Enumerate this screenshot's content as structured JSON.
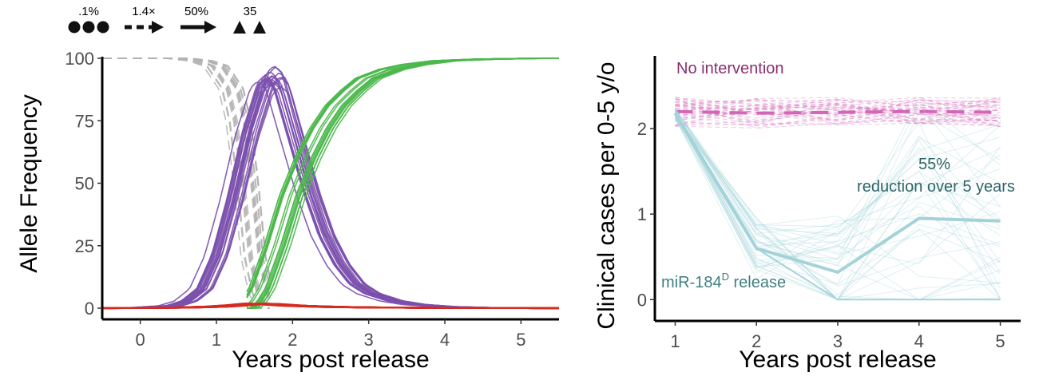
{
  "colors": {
    "wildtype": "#b3b3b3",
    "drive": "#7b4fad",
    "effector": "#4db84d",
    "resistant": "#d62a1f",
    "no_intervention": "#d466b8",
    "release": "#a3d3d9",
    "axis": "#000000"
  },
  "legend": {
    "items": [
      {
        "label": ".1%",
        "icon": "three-dots-icon"
      },
      {
        "label": "1.4×",
        "icon": "dashed-arrow-icon"
      },
      {
        "label": "50%",
        "icon": "solid-arrow-icon"
      },
      {
        "label": "35",
        "icon": "two-triangles-icon"
      }
    ]
  },
  "chart_data": [
    {
      "type": "line",
      "title": "",
      "xlabel": "Years post release",
      "ylabel": "Allele Frequency",
      "xlim": [
        -0.5,
        5.5
      ],
      "ylim": [
        0,
        100
      ],
      "x_ticks": [
        0,
        1,
        2,
        3,
        4,
        5
      ],
      "y_ticks": [
        0,
        25,
        50,
        75,
        100
      ],
      "grid": false,
      "replicates_per_series": 20,
      "series": [
        {
          "name": "",
          "color": "#b3b3b3",
          "style": "dashed",
          "x": [
            -0.5,
            0.5,
            0.8,
            1.0,
            1.2,
            1.3,
            1.4,
            1.5,
            1.6,
            1.7
          ],
          "y": [
            100,
            100,
            99,
            97,
            88,
            75,
            50,
            20,
            6,
            0
          ]
        },
        {
          "name": "",
          "color": "#7b4fad",
          "style": "solid",
          "x": [
            -0.5,
            0.0,
            0.4,
            0.6,
            0.8,
            1.0,
            1.2,
            1.4,
            1.6,
            1.7,
            1.8,
            2.0,
            2.2,
            2.4,
            2.6,
            2.8,
            3.0,
            3.3,
            3.6,
            4.0,
            4.5,
            5.0,
            5.5
          ],
          "y": [
            0,
            0.2,
            1,
            3,
            8,
            22,
            45,
            72,
            92,
            95,
            92,
            70,
            48,
            30,
            18,
            10,
            6,
            3,
            1.5,
            0.6,
            0.2,
            0.1,
            0
          ]
        },
        {
          "name": "",
          "color": "#4db84d",
          "style": "solid",
          "x": [
            1.4,
            1.5,
            1.6,
            1.8,
            2.0,
            2.2,
            2.4,
            2.6,
            2.8,
            3.0,
            3.3,
            3.6,
            4.0,
            4.5,
            5.0,
            5.5
          ],
          "y": [
            0,
            3,
            8,
            25,
            45,
            60,
            72,
            81,
            87,
            92,
            95.5,
            97.5,
            99,
            99.6,
            99.9,
            100
          ]
        },
        {
          "name": "",
          "color": "#d62a1f",
          "style": "solid",
          "x": [
            -0.5,
            0.5,
            1.0,
            1.3,
            1.5,
            1.7,
            2.0,
            2.5,
            3.0,
            4.0,
            5.5
          ],
          "y": [
            0,
            0.2,
            0.6,
            1.2,
            1.8,
            1.6,
            1.0,
            0.5,
            0.3,
            0.1,
            0
          ]
        }
      ]
    },
    {
      "type": "line",
      "title": "",
      "xlabel": "Years post release",
      "ylabel": "Clinical cases per 0-5 y/o",
      "xlim": [
        0.75,
        5.25
      ],
      "ylim": [
        -0.1,
        2.85
      ],
      "x_ticks": [
        1,
        2,
        3,
        4,
        5
      ],
      "y_ticks": [
        0,
        1,
        2
      ],
      "grid": false,
      "series": [
        {
          "name": "No intervention",
          "color": "#d466b8",
          "style": "dashed",
          "x": [
            1,
            2,
            3,
            4,
            5
          ],
          "y": [
            2.2,
            2.18,
            2.19,
            2.2,
            2.19
          ]
        },
        {
          "name": "miR-184D release",
          "color": "#a3d3d9",
          "style": "solid",
          "x": [
            1,
            2,
            3,
            4,
            5
          ],
          "y": [
            2.18,
            0.6,
            0.32,
            0.95,
            0.92
          ]
        }
      ],
      "annotations": [
        {
          "text": "No intervention"
        },
        {
          "text_main": "miR-184",
          "text_sup": "D",
          "text_rest": " release"
        },
        {
          "line1": "55%",
          "line2": "reduction over 5 years"
        }
      ]
    }
  ]
}
